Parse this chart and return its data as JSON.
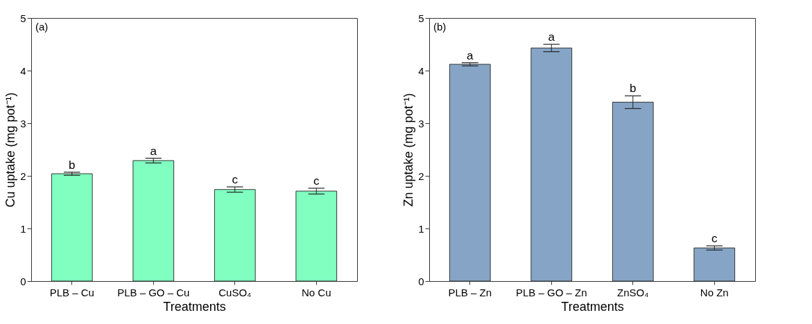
{
  "chart_data": [
    {
      "type": "bar",
      "xlabel": "Treatments",
      "ylabel": "Cu uptake (mg pot⁻¹)",
      "categories": [
        "PLB – Cu",
        "PLB – GO – Cu",
        "CuSO₄",
        "No Cu"
      ],
      "series": [
        {
          "color": "#80ffc0",
          "values": [
            2.04,
            2.29,
            1.74,
            1.71
          ],
          "errors": [
            0.03,
            0.045,
            0.05,
            0.055
          ]
        }
      ],
      "ylim": [
        0,
        5
      ],
      "yticks": [
        0,
        1,
        2,
        3,
        4,
        5
      ],
      "grid": false,
      "annotations": [
        "(a)",
        {
          "text": "b",
          "x": "PLB – Cu",
          "y": 2.07
        },
        {
          "text": "a",
          "x": "PLB – GO – Cu",
          "y": 2.335
        },
        {
          "text": "c",
          "x": "CuSO₄",
          "y": 1.79
        },
        {
          "text": "c",
          "x": "No Cu",
          "y": 1.765
        }
      ]
    },
    {
      "type": "bar",
      "xlabel": "Treatments",
      "ylabel": "Zn uptake (mg pot⁻¹)",
      "categories": [
        "PLB – Zn",
        "PLB – GO – Zn",
        "ZnSO₄",
        "No Zn"
      ],
      "series": [
        {
          "color": "#86a5c6",
          "values": [
            4.12,
            4.43,
            3.4,
            0.63
          ],
          "errors": [
            0.03,
            0.07,
            0.12,
            0.04
          ]
        }
      ],
      "ylim": [
        0,
        5
      ],
      "yticks": [
        0,
        1,
        2,
        3,
        4,
        5
      ],
      "grid": false,
      "annotations": [
        "(b)",
        {
          "text": "a",
          "x": "PLB – Zn",
          "y": 4.15
        },
        {
          "text": "a",
          "x": "PLB – GO – Zn",
          "y": 4.5
        },
        {
          "text": "b",
          "x": "ZnSO₄",
          "y": 3.52
        },
        {
          "text": "c",
          "x": "No Zn",
          "y": 0.67
        }
      ]
    }
  ]
}
